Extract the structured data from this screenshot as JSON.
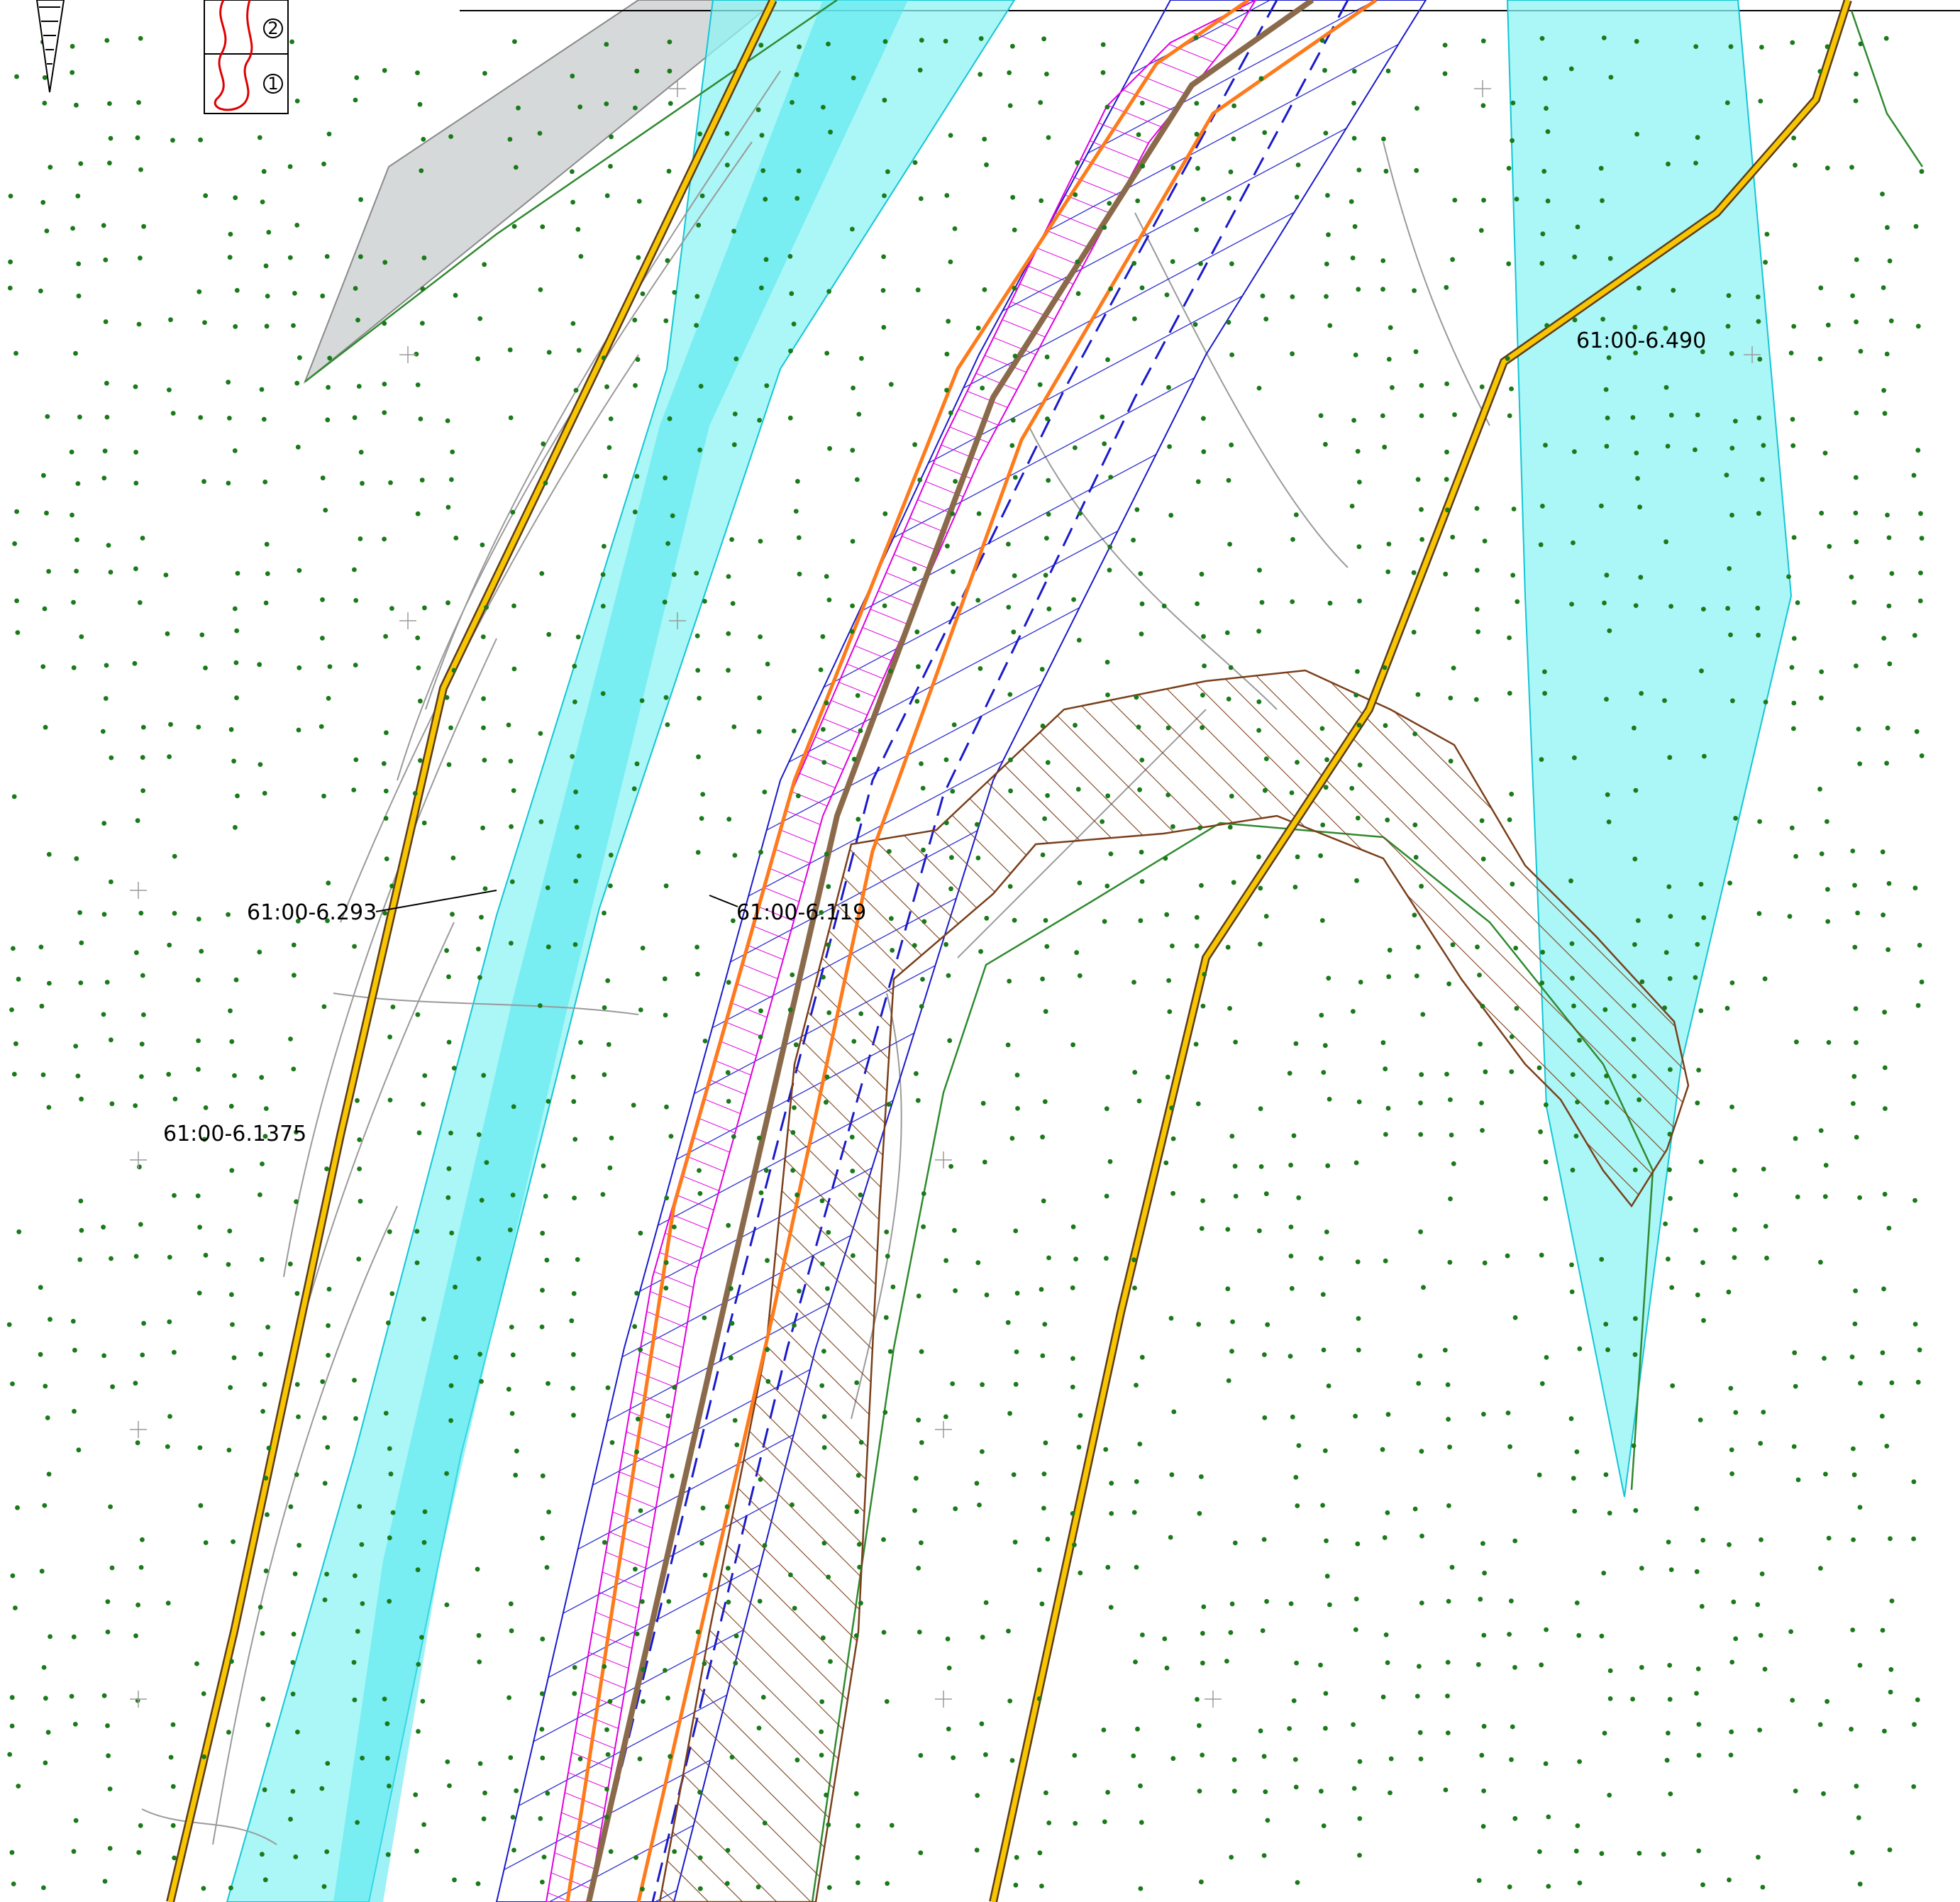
{
  "drawing": {
    "parcels": [
      {
        "id": "p1",
        "label": "61:00-6.293"
      },
      {
        "id": "p2",
        "label": "61:00-6.119"
      },
      {
        "id": "p3",
        "label": "61:00-6.1375"
      },
      {
        "id": "p4",
        "label": "61:00-6.490"
      }
    ],
    "legend": {
      "items": [
        "1",
        "2"
      ]
    },
    "colors": {
      "background": "#ffffff",
      "vegetation_dot": "#1a7a1a",
      "water_zone": "#8ff3f3",
      "water_zone_dark": "#4fe6ee",
      "road_yellow": "#f7c600",
      "road_edge": "#5b3b1a",
      "pipeline_orange": "#ff7a1a",
      "pipeline_brown": "#8a6a4a",
      "hatch_blue": "#1a1acc",
      "hatch_magenta": "#e000e0",
      "hatch_brown": "#7a3f1a",
      "contour_gray": "#9a9a9a",
      "gray_block": "#d5d9d9",
      "boundary_green": "#2f8a2f"
    }
  }
}
